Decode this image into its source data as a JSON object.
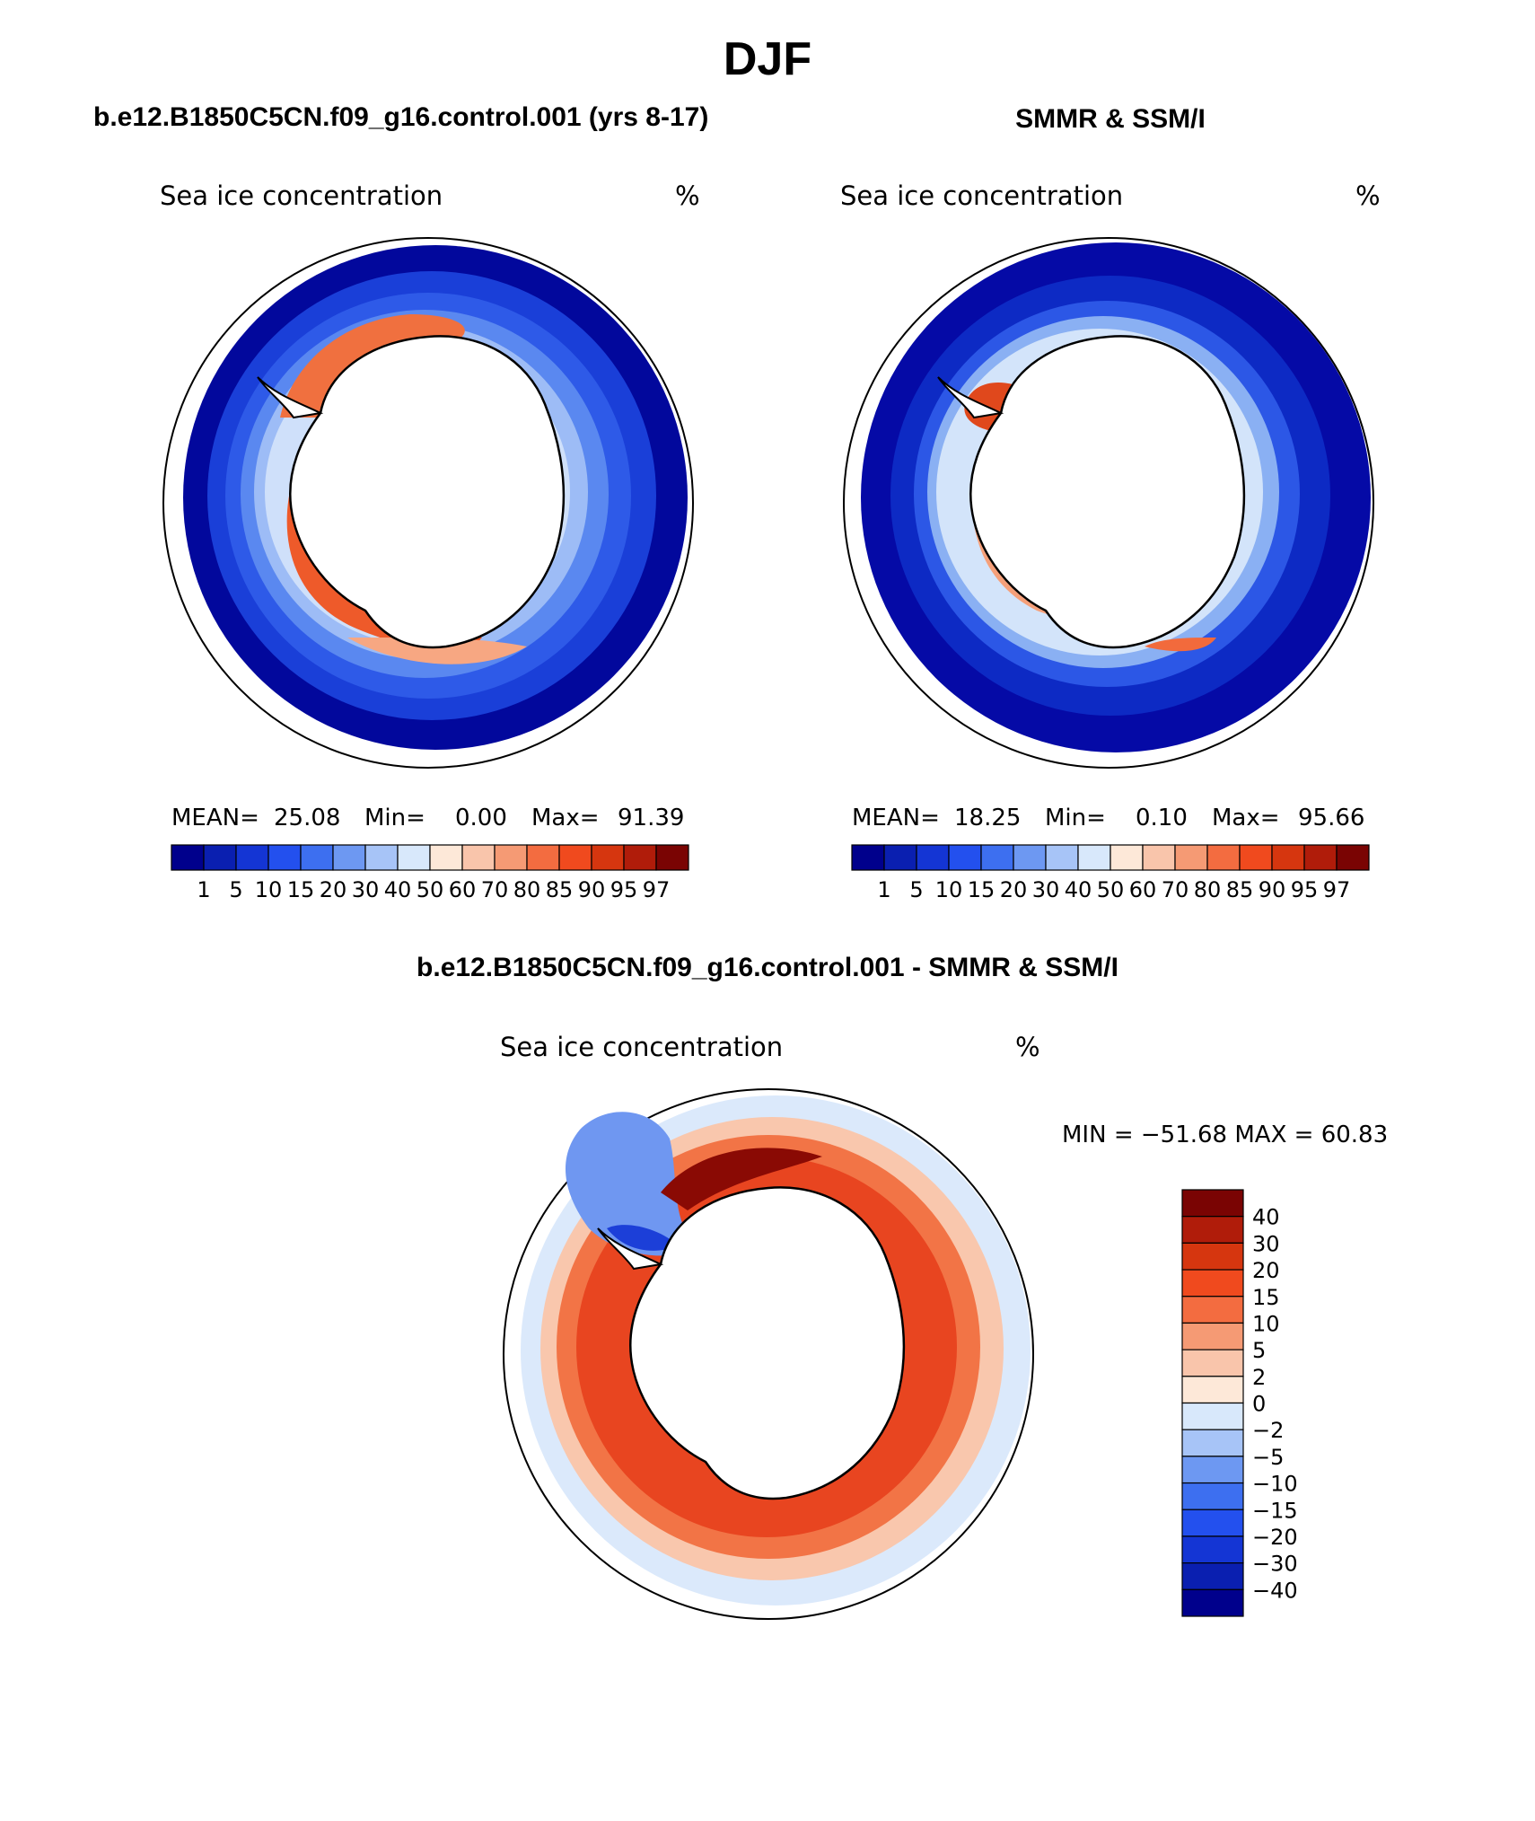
{
  "page": {
    "season": "DJF"
  },
  "panels": {
    "model": {
      "heading": "b.e12.B1850C5CN.f09_g16.control.001 (yrs 8-17)",
      "variable": "Sea ice concentration",
      "units": "%",
      "stats": {
        "mean_label": "MEAN=",
        "mean": "25.08",
        "min_label": "Min=",
        "min": "0.00",
        "max_label": "Max=",
        "max": "91.39"
      }
    },
    "obs": {
      "heading": "SMMR & SSM/I",
      "variable": "Sea ice concentration",
      "units": "%",
      "stats": {
        "mean_label": "MEAN=",
        "mean": "18.25",
        "min_label": "Min=",
        "min": "0.10",
        "max_label": "Max=",
        "max": "95.66"
      }
    },
    "diff": {
      "heading": "b.e12.B1850C5CN.f09_g16.control.001 - SMMR & SSM/I",
      "variable": "Sea ice concentration",
      "units": "%",
      "stats_text": "MIN = −51.68 MAX =   60.83"
    }
  },
  "colorbars": {
    "concentration": {
      "labels": [
        "1",
        "5",
        "10",
        "15",
        "20",
        "30",
        "40",
        "50",
        "60",
        "70",
        "80",
        "85",
        "90",
        "95",
        "97"
      ],
      "colors": [
        "#00008c",
        "#0a1fb0",
        "#1435d4",
        "#2350ee",
        "#3d6ff0",
        "#6d98f2",
        "#a7c4f7",
        "#d8e8fb",
        "#fde8d8",
        "#f9c5ab",
        "#f59a74",
        "#f36c40",
        "#f04a1e",
        "#d6360f",
        "#b01c0a",
        "#7a0403"
      ]
    },
    "difference": {
      "labels": [
        "40",
        "30",
        "20",
        "15",
        "10",
        "5",
        "2",
        "0",
        "−2",
        "−5",
        "−10",
        "−15",
        "−20",
        "−30",
        "−40"
      ],
      "colors": [
        "#7a0403",
        "#b01c0a",
        "#d6360f",
        "#f04a1e",
        "#f36c40",
        "#f59a74",
        "#f9c5ab",
        "#fde8d8",
        "#d8e8fb",
        "#a7c4f7",
        "#6d98f2",
        "#3d6ff0",
        "#2350ee",
        "#1435d4",
        "#0a1fb0",
        "#00008c"
      ]
    }
  }
}
